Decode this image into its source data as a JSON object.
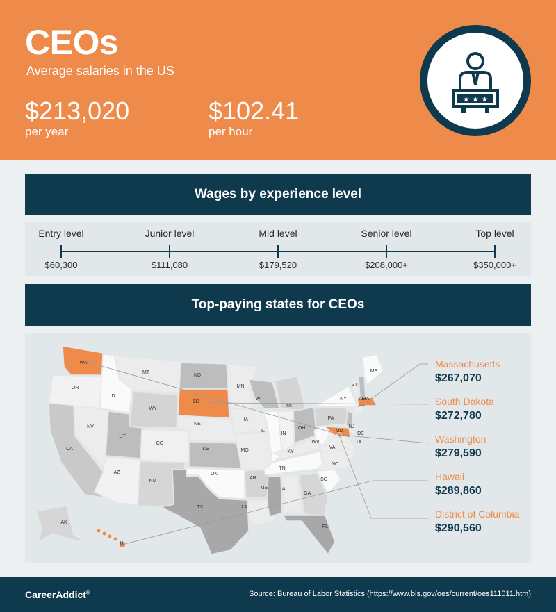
{
  "header": {
    "title": "CEOs",
    "subtitle": "Average salaries in the US",
    "annual": {
      "value": "$213,020",
      "label": "per year"
    },
    "hourly": {
      "value": "$102.41",
      "label": "per hour"
    },
    "icon": "ceo-podium-icon"
  },
  "experience": {
    "title": "Wages by experience level",
    "levels": [
      {
        "label": "Entry level",
        "value": "$60,300"
      },
      {
        "label": "Junior level",
        "value": "$111,080"
      },
      {
        "label": "Mid level",
        "value": "$179,520"
      },
      {
        "label": "Senior level",
        "value": "$208,000+"
      },
      {
        "label": "Top level",
        "value": "$350,000+"
      }
    ]
  },
  "states": {
    "title": "Top-paying states for CEOs",
    "top": [
      {
        "name": "Massachusetts",
        "value": "$267,070"
      },
      {
        "name": "South Dakota",
        "value": "$272,780"
      },
      {
        "name": "Washington",
        "value": "$279,590"
      },
      {
        "name": "Hawaii",
        "value": "$289,860"
      },
      {
        "name": "District of Columbia",
        "value": "$290,560"
      }
    ],
    "map_labels": [
      "WA",
      "OR",
      "CA",
      "NV",
      "ID",
      "MT",
      "WY",
      "UT",
      "AZ",
      "CO",
      "NM",
      "ND",
      "SD",
      "NE",
      "KS",
      "OK",
      "TX",
      "MN",
      "IA",
      "MO",
      "AR",
      "LA",
      "WI",
      "IL",
      "MI",
      "IN",
      "OH",
      "KY",
      "TN",
      "MS",
      "AL",
      "GA",
      "FL",
      "SC",
      "NC",
      "VA",
      "WV",
      "PA",
      "NY",
      "VT",
      "NH",
      "ME",
      "MA",
      "CT",
      "NJ",
      "DE",
      "MD",
      "DC",
      "AK",
      "HI"
    ]
  },
  "colors": {
    "orange": "#ee8a4a",
    "navy": "#0f3a4e"
  },
  "footer": {
    "logo": "CareerAddict",
    "source": "Source: Bureau of Labor Statistics (https://www.bls.gov/oes/current/oes111011.htm)"
  }
}
